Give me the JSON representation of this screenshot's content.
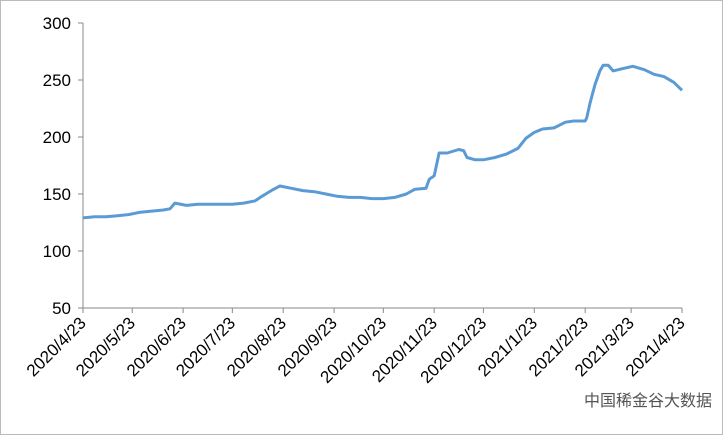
{
  "chart_data": {
    "type": "line",
    "x": [
      "2020/4/23",
      "2020/4/30",
      "2020/5/7",
      "2020/5/14",
      "2020/5/21",
      "2020/5/28",
      "2020/6/4",
      "2020/6/11",
      "2020/6/15",
      "2020/6/18",
      "2020/6/25",
      "2020/7/2",
      "2020/7/9",
      "2020/7/16",
      "2020/7/23",
      "2020/7/30",
      "2020/8/6",
      "2020/8/10",
      "2020/8/17",
      "2020/8/21",
      "2020/8/28",
      "2020/9/4",
      "2020/9/11",
      "2020/9/18",
      "2020/9/25",
      "2020/10/2",
      "2020/10/9",
      "2020/10/16",
      "2020/10/23",
      "2020/10/30",
      "2020/11/6",
      "2020/11/11",
      "2020/11/18",
      "2020/11/20",
      "2020/11/23",
      "2020/11/26",
      "2020/12/1",
      "2020/12/8",
      "2020/12/11",
      "2020/12/13",
      "2020/12/18",
      "2020/12/23",
      "2020/12/30",
      "2021/1/6",
      "2021/1/13",
      "2021/1/18",
      "2021/1/23",
      "2021/1/28",
      "2021/2/4",
      "2021/2/11",
      "2021/2/16",
      "2021/2/23",
      "2021/2/24",
      "2021/2/26",
      "2021/3/1",
      "2021/3/4",
      "2021/3/6",
      "2021/3/9",
      "2021/3/12",
      "2021/3/18",
      "2021/3/24",
      "2021/3/31",
      "2021/4/6",
      "2021/4/12",
      "2021/4/18",
      "2021/4/23"
    ],
    "series": [
      {
        "color": "#5b9bd5",
        "values": [
          129,
          130,
          130,
          131,
          132,
          134,
          135,
          136,
          137,
          142,
          140,
          141,
          141,
          141,
          141,
          142,
          144,
          148,
          154,
          157,
          155,
          153,
          152,
          150,
          148,
          147,
          147,
          146,
          146,
          147,
          150,
          154,
          155,
          163,
          166,
          186,
          186,
          189,
          188,
          182,
          180,
          180,
          182,
          185,
          190,
          199,
          204,
          207,
          208,
          213,
          214,
          214,
          217,
          230,
          246,
          258,
          263,
          263,
          258,
          260,
          262,
          259,
          255,
          253,
          248,
          241
        ]
      }
    ],
    "xticks": [
      "2020/4/23",
      "2020/5/23",
      "2020/6/23",
      "2020/7/23",
      "2020/8/23",
      "2020/9/23",
      "2020/10/23",
      "2020/11/23",
      "2020/12/23",
      "2021/1/23",
      "2021/2/23",
      "2021/3/23",
      "2021/4/23"
    ],
    "xlim": [
      "2020/4/23",
      "2021/4/23"
    ],
    "ylim": [
      50,
      300
    ],
    "yticks": [
      50,
      100,
      150,
      200,
      250,
      300
    ],
    "watermark": "中国稀金谷大数据"
  }
}
